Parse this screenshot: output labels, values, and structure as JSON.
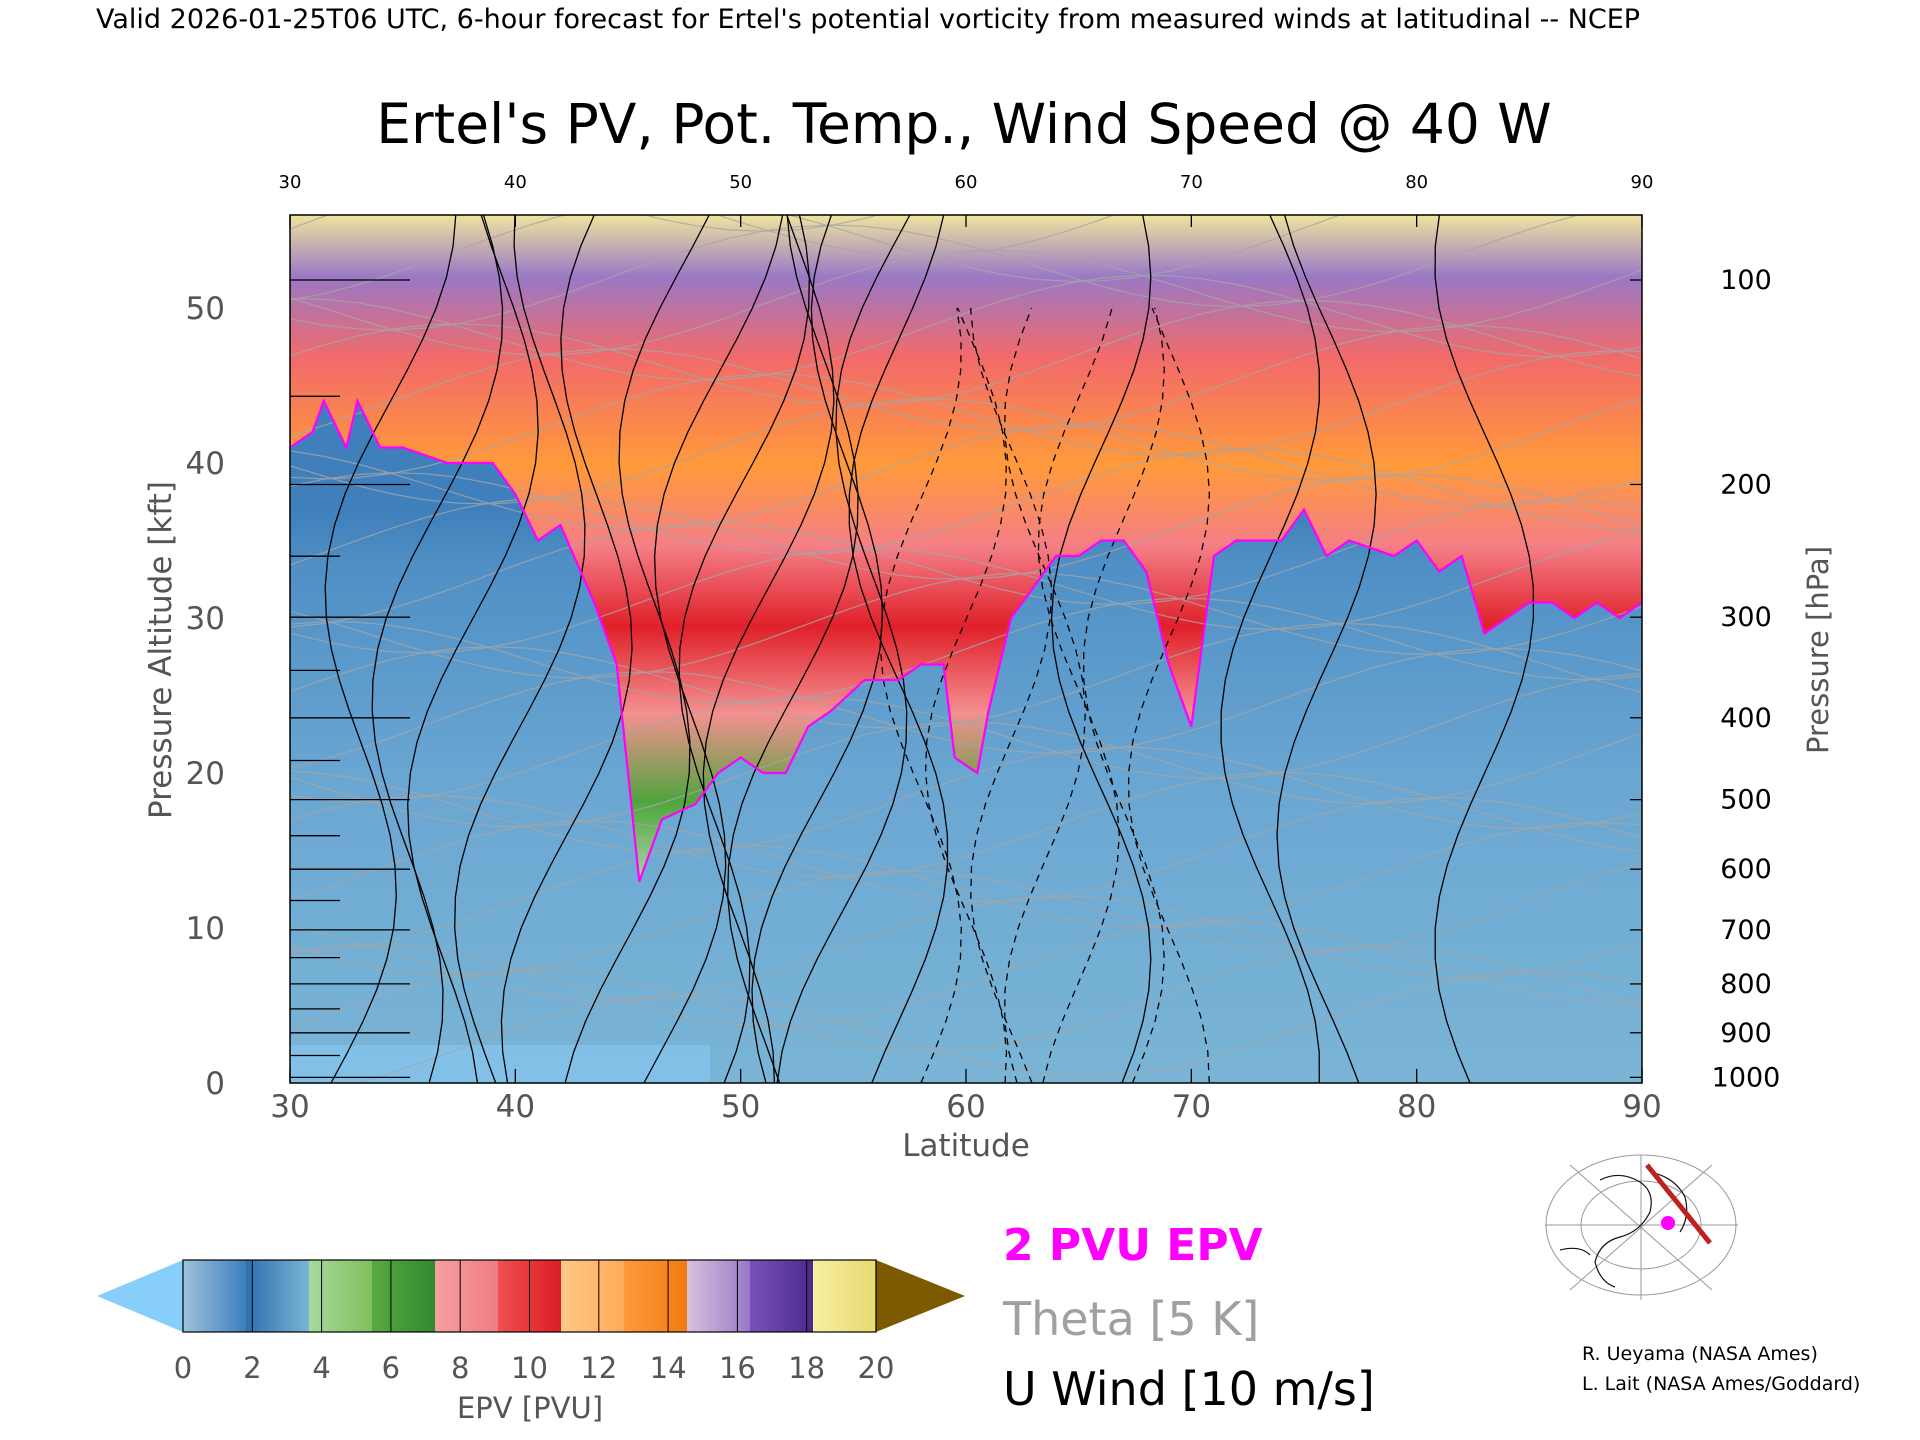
{
  "header": "Valid 2026-01-25T06 UTC, 6-hour forecast for Ertel's potential vorticity from measured winds at latitudinal -- NCEP",
  "chart_data": {
    "type": "heatmap",
    "title": "Ertel's PV, Pot. Temp., Wind Speed @ 40 W",
    "xlabel": "Latitude",
    "ylabel": "Pressure Altitude [kft]",
    "y2label": "Pressure [hPa]",
    "xlim": [
      30,
      90
    ],
    "ylim": [
      0,
      56
    ],
    "x_ticks": [
      "30",
      "40",
      "50",
      "60",
      "70",
      "80",
      "90"
    ],
    "top_ticks": [
      "30",
      "40",
      "50",
      "60",
      "70",
      "80",
      "90"
    ],
    "y_ticks": [
      {
        "v": 0,
        "t": "0"
      },
      {
        "v": 10,
        "t": "10"
      },
      {
        "v": 20,
        "t": "20"
      },
      {
        "v": 30,
        "t": "30"
      },
      {
        "v": 40,
        "t": "40"
      },
      {
        "v": 50,
        "t": "50"
      }
    ],
    "pressure_ticks": [
      {
        "p": 1000,
        "t": "1000"
      },
      {
        "p": 900,
        "t": "900"
      },
      {
        "p": 800,
        "t": "800"
      },
      {
        "p": 700,
        "t": "700"
      },
      {
        "p": 600,
        "t": "600"
      },
      {
        "p": 500,
        "t": "500"
      },
      {
        "p": 400,
        "t": "400"
      },
      {
        "p": 300,
        "t": "300"
      },
      {
        "p": 200,
        "t": "200"
      },
      {
        "p": 100,
        "t": "100"
      }
    ],
    "tropopause_2pvu": [
      [
        30,
        41
      ],
      [
        31,
        42
      ],
      [
        31.5,
        44
      ],
      [
        32.5,
        41
      ],
      [
        33,
        44
      ],
      [
        34,
        41
      ],
      [
        35,
        41
      ],
      [
        37,
        40
      ],
      [
        39,
        40
      ],
      [
        40,
        38
      ],
      [
        41,
        35
      ],
      [
        42,
        36
      ],
      [
        43.5,
        31
      ],
      [
        44.5,
        27
      ],
      [
        45.5,
        13
      ],
      [
        46.5,
        17
      ],
      [
        48,
        18
      ],
      [
        49,
        20
      ],
      [
        50,
        21
      ],
      [
        51,
        20
      ],
      [
        52,
        20
      ],
      [
        53,
        23
      ],
      [
        54,
        24
      ],
      [
        55.5,
        26
      ],
      [
        57,
        26
      ],
      [
        58,
        27
      ],
      [
        59,
        27
      ],
      [
        59.5,
        21
      ],
      [
        60.5,
        20
      ],
      [
        61,
        24
      ],
      [
        62,
        30
      ],
      [
        63,
        32
      ],
      [
        64,
        34
      ],
      [
        65,
        34
      ],
      [
        66,
        35
      ],
      [
        67,
        35
      ],
      [
        68,
        33
      ],
      [
        69,
        27
      ],
      [
        70,
        23
      ],
      [
        71,
        34
      ],
      [
        72,
        35
      ],
      [
        74,
        35
      ],
      [
        75,
        37
      ],
      [
        76,
        34
      ],
      [
        77,
        35
      ],
      [
        79,
        34
      ],
      [
        80,
        35
      ],
      [
        81,
        33
      ],
      [
        82,
        34
      ],
      [
        83,
        29
      ],
      [
        84,
        30
      ],
      [
        85,
        31
      ],
      [
        86,
        31
      ],
      [
        87,
        30
      ],
      [
        88,
        31
      ],
      [
        89,
        30
      ],
      [
        90,
        31
      ]
    ],
    "colorbar": {
      "label": "EPV [PVU]",
      "ticks": [
        "0",
        "2",
        "4",
        "6",
        "8",
        "10",
        "12",
        "14",
        "16",
        "18",
        "20"
      ],
      "under_color": "#87CEFA",
      "over_color": "#7D5A00",
      "segments": [
        [
          "#9ec2dc",
          "#3b7fbd"
        ],
        [
          "#2f6fae",
          "#7ab5d6"
        ],
        [
          "#a8d9a0",
          "#7fbf5a"
        ],
        [
          "#5aa843",
          "#2e8a2e"
        ],
        [
          "#f4a0a0",
          "#f07c84"
        ],
        [
          "#f05050",
          "#d91c24"
        ],
        [
          "#ffc888",
          "#ffab5a"
        ],
        [
          "#ff9a3a",
          "#f07b10"
        ],
        [
          "#d6c2e0",
          "#9a78c6"
        ],
        [
          "#7a50b8",
          "#4a2a8c"
        ],
        [
          "#f6f0a0",
          "#e8d870"
        ]
      ]
    },
    "legend": [
      {
        "label": "2 PVU EPV",
        "color": "#ff00ff"
      },
      {
        "label": "Theta [5 K]",
        "color": "#a0a0a0"
      },
      {
        "label": "U Wind [10 m/s]",
        "color": "#000000"
      }
    ]
  },
  "credits": [
    "R. Ueyama (NASA Ames)",
    "L. Lait (NASA Ames/Goddard)"
  ]
}
